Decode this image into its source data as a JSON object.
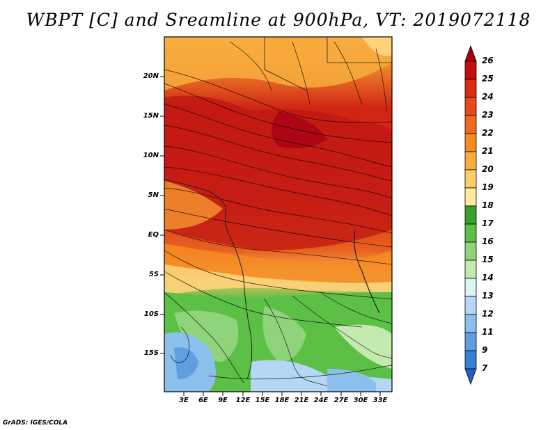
{
  "title": "WBPT [C] and Sreamline at 900hPa, VT: 2019072118",
  "credit": "GrADS: IGES/COLA",
  "lat_ticks": [
    "20N",
    "15N",
    "10N",
    "5N",
    "EQ",
    "5S",
    "10S",
    "15S"
  ],
  "lon_ticks": [
    "3E",
    "6E",
    "9E",
    "12E",
    "15E",
    "18E",
    "21E",
    "24E",
    "27E",
    "30E",
    "33E"
  ],
  "colorbar": {
    "labels": [
      "26",
      "25",
      "24",
      "23",
      "22",
      "21",
      "20",
      "19",
      "18",
      "17",
      "16",
      "15",
      "14",
      "13",
      "12",
      "11",
      "9",
      "7"
    ],
    "colors": [
      "#a50015",
      "#c30d12",
      "#dc2a14",
      "#e8491a",
      "#f06a1e",
      "#f58c22",
      "#f9ae3c",
      "#fcce6a",
      "#fdeaa0",
      "#38a02d",
      "#5cbf46",
      "#8fd47a",
      "#c4eab0",
      "#e0f3f7",
      "#b4d8f4",
      "#8cc0ec",
      "#5d9fe0",
      "#3a7fd4",
      "#1f60c6"
    ]
  }
}
